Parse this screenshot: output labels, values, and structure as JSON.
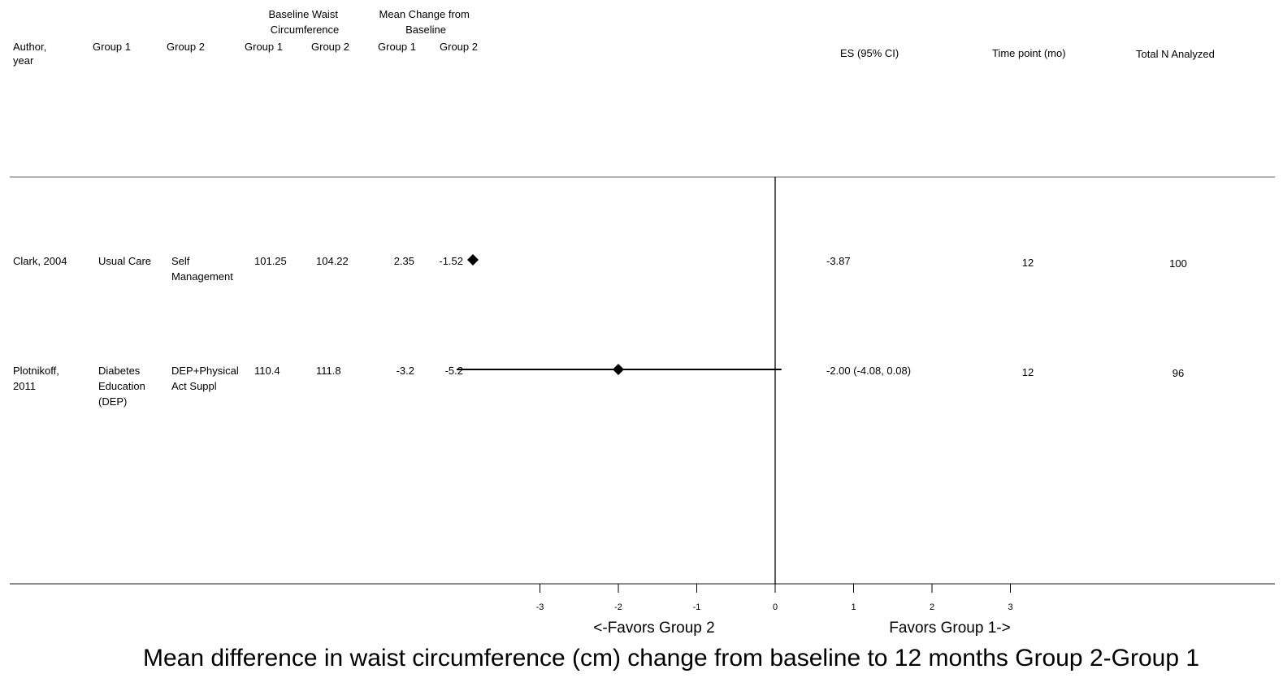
{
  "header": {
    "author": [
      "Author,",
      "year"
    ],
    "group1": "Group 1",
    "group2": "Group 2",
    "baseline_title": [
      "Baseline Waist",
      "Circumference"
    ],
    "baseline_g1": "Group 1",
    "baseline_g2": "Group 2",
    "change_title": [
      "Mean Change from",
      "Baseline"
    ],
    "change_g1": "Group 1",
    "change_g2": "Group 2",
    "es": "ES (95% CI)",
    "timepoint": "Time point (mo)",
    "total_n": "Total N Analyzed"
  },
  "chart_data": {
    "type": "forest",
    "xlim": [
      -3,
      3
    ],
    "x_ticks": [
      "-3",
      "-2",
      "-1",
      "0",
      "1",
      "2",
      "3"
    ],
    "favors_left": "<-Favors Group 2",
    "favors_right": "Favors Group 1->",
    "title": "Mean difference in waist circumference (cm) change from baseline to 12 months Group 2-Group 1",
    "rows": [
      {
        "author": [
          "Clark, 2004"
        ],
        "group1": [
          "Usual Care"
        ],
        "group2": [
          "Self",
          "Management"
        ],
        "baseline_g1": "101.25",
        "baseline_g2": "104.22",
        "change_g1": "2.35",
        "change_g2": "-1.52",
        "es": -3.87,
        "ci": null,
        "es_label": "-3.87",
        "timepoint": "12",
        "total_n": "100"
      },
      {
        "author": [
          "Plotnikoff,",
          "2011"
        ],
        "group1": [
          "Diabetes",
          "Education",
          "(DEP)"
        ],
        "group2": [
          "DEP+Physical",
          "Act Suppl"
        ],
        "baseline_g1": "110.4",
        "baseline_g2": "111.8",
        "change_g1": "-3.2",
        "change_g2": "-5.2",
        "es": -2.0,
        "ci": [
          -4.08,
          0.08
        ],
        "es_label": "-2.00 (-4.08, 0.08)",
        "timepoint": "12",
        "total_n": "96"
      }
    ]
  }
}
